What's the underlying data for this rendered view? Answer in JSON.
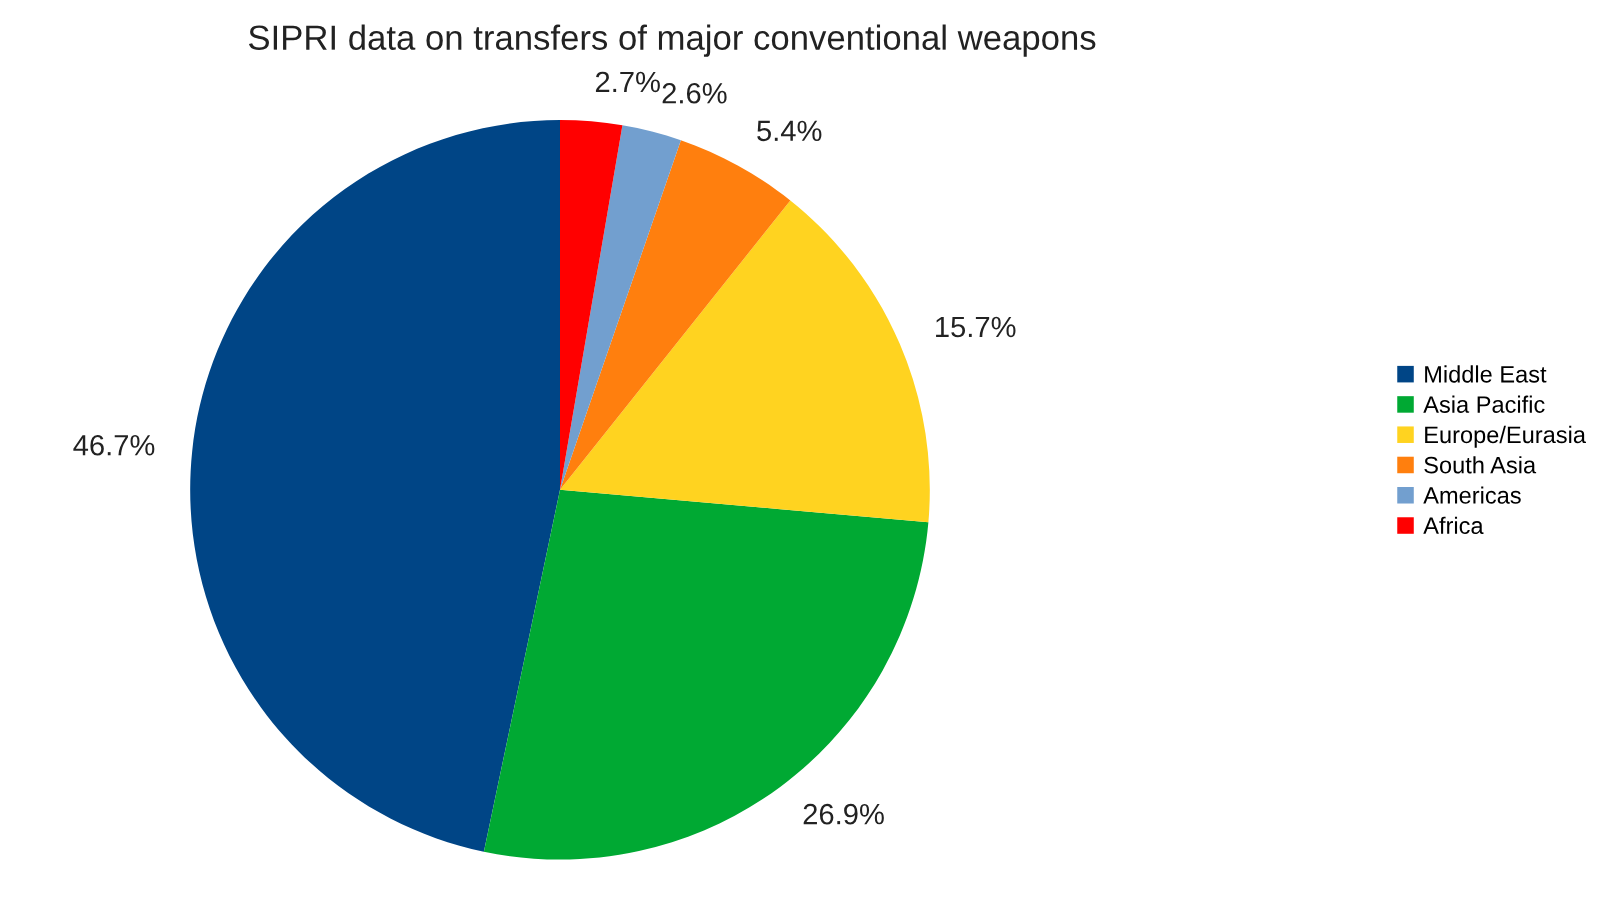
{
  "chart_data": {
    "type": "pie",
    "title": "SIPRI data on transfers of major conventional weapons",
    "categories": [
      "Middle East",
      "Asia Pacific",
      "Europe/Eurasia",
      "South Asia",
      "Americas",
      "Africa"
    ],
    "values": [
      46.7,
      26.9,
      15.7,
      5.4,
      2.6,
      2.7
    ],
    "colors": [
      "#004586",
      "#00a933",
      "#ffd320",
      "#ff7f0e",
      "#729fcf",
      "#ff0000"
    ],
    "value_labels": [
      "46.7%",
      "26.9%",
      "15.7%",
      "5.4%",
      "2.6%",
      "2.7%"
    ],
    "legend": "right"
  }
}
